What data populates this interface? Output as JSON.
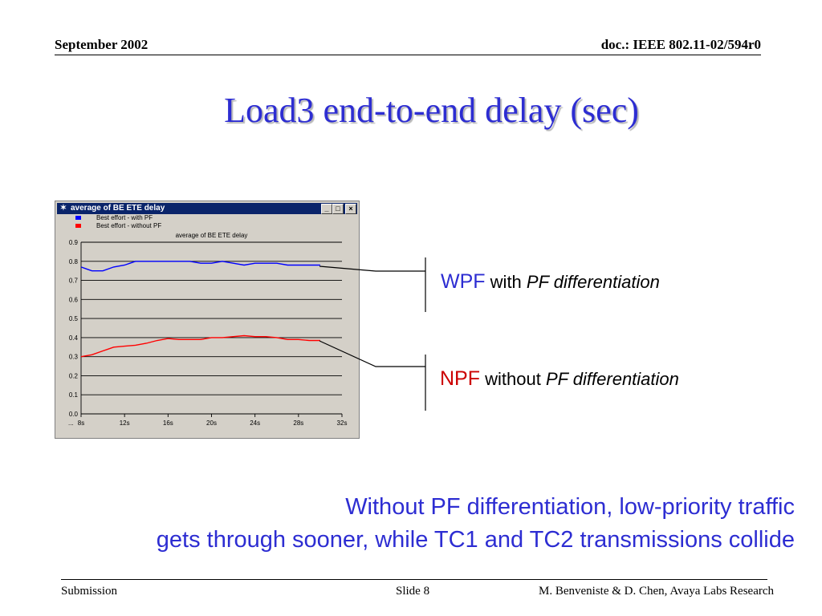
{
  "header": {
    "date": "September 2002",
    "doc_id": "doc.: IEEE 802.11-02/594r0"
  },
  "title": "Load3 end-to-end delay (sec)",
  "window": {
    "title": "average of BE ETE delay",
    "icon": "star-icon",
    "buttons": [
      "_",
      "□",
      "×"
    ]
  },
  "chart_data": {
    "type": "line",
    "title": "average of BE ETE delay",
    "xlabel": "",
    "ylabel": "",
    "xlim": [
      8,
      32
    ],
    "ylim": [
      0,
      0.9
    ],
    "x_ticks": [
      8,
      12,
      16,
      20,
      24,
      28,
      32
    ],
    "x_tick_labels": [
      "8s",
      "12s",
      "16s",
      "20s",
      "24s",
      "28s",
      "32s"
    ],
    "x_axis_prefix": "...",
    "y_ticks": [
      0.0,
      0.1,
      0.2,
      0.3,
      0.4,
      0.5,
      0.6,
      0.7,
      0.8,
      0.9
    ],
    "y_tick_labels": [
      "0.0",
      "0.1",
      "0.2",
      "0.3",
      "0.4",
      "0.5",
      "0.6",
      "0.7",
      "0.8",
      "0.9"
    ],
    "grid": "horizontal",
    "legend_position": "top-left",
    "series": [
      {
        "name": "Best effort - with PF",
        "color": "#0000ff",
        "x": [
          8,
          8.5,
          9,
          10,
          11,
          12,
          12.5,
          13,
          14,
          15,
          16,
          17,
          18,
          19,
          20,
          21,
          22,
          23,
          24,
          25,
          26,
          27,
          28,
          29,
          30
        ],
        "y": [
          0.77,
          0.76,
          0.75,
          0.75,
          0.77,
          0.78,
          0.79,
          0.8,
          0.8,
          0.8,
          0.8,
          0.8,
          0.8,
          0.79,
          0.79,
          0.8,
          0.79,
          0.78,
          0.79,
          0.79,
          0.79,
          0.78,
          0.78,
          0.78,
          0.78
        ]
      },
      {
        "name": "Best effort - without PF",
        "color": "#ff0000",
        "x": [
          8,
          9,
          10,
          10.5,
          11,
          12,
          13,
          14,
          15,
          16,
          17,
          18,
          19,
          20,
          21,
          22,
          23,
          24,
          25,
          26,
          27,
          28,
          29,
          30
        ],
        "y": [
          0.3,
          0.31,
          0.33,
          0.34,
          0.35,
          0.355,
          0.36,
          0.37,
          0.385,
          0.395,
          0.39,
          0.39,
          0.39,
          0.4,
          0.4,
          0.405,
          0.41,
          0.405,
          0.405,
          0.4,
          0.39,
          0.39,
          0.385,
          0.385
        ]
      }
    ]
  },
  "annotations": {
    "wpf": {
      "abbr": "WPF",
      "word": "with",
      "phrase": "PF differentiation"
    },
    "npf": {
      "abbr": "NPF",
      "word": "without",
      "phrase": "PF differentiation"
    }
  },
  "message": {
    "line1": "Without PF differentiation, low-priority traffic",
    "line2": "gets through sooner, while TC1 and TC2 transmissions collide"
  },
  "footer": {
    "left": "Submission",
    "center": "Slide 8",
    "right": "M. Benveniste & D. Chen, Avaya Labs Research"
  }
}
